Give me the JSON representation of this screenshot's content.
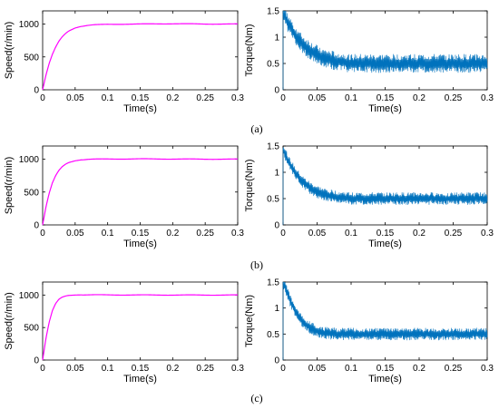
{
  "colors": {
    "speed": "#ff00ff",
    "torque": "#0072bd",
    "axis": "#000000"
  },
  "captions": [
    "(a)",
    "(b)",
    "(c)"
  ],
  "chart_data": [
    {
      "panel": "(a)",
      "type": "line",
      "xlabel": "Time(s)",
      "ylabel": "Speed(r/min)",
      "xlim": [
        0,
        0.3
      ],
      "ylim": [
        0,
        1200
      ],
      "xticks": [
        "0",
        "0.05",
        "0.1",
        "0.15",
        "0.2",
        "0.25",
        "0.3"
      ],
      "yticks": [
        "0",
        "500",
        "1000"
      ],
      "series": [
        {
          "x": [
            0,
            0.005,
            0.01,
            0.015,
            0.02,
            0.025,
            0.03,
            0.035,
            0.04,
            0.05,
            0.06,
            0.07,
            0.08,
            0.1,
            0.12,
            0.15,
            0.2,
            0.25,
            0.3
          ],
          "values": [
            0,
            220,
            400,
            540,
            650,
            740,
            805,
            855,
            893,
            940,
            965,
            980,
            988,
            995,
            998,
            1000,
            1005,
            1000,
            1000
          ]
        }
      ]
    },
    {
      "panel": "(a)",
      "type": "line",
      "xlabel": "Time(s)",
      "ylabel": "Torque(Nm)",
      "xlim": [
        0,
        0.3
      ],
      "ylim": [
        0,
        1.5
      ],
      "xticks": [
        "0",
        "0.05",
        "0.1",
        "0.15",
        "0.2",
        "0.25",
        "0.3"
      ],
      "yticks": [
        "0",
        "0.5",
        "1",
        "1.5"
      ],
      "series": [
        {
          "x": [
            0,
            0.002,
            0.01,
            0.02,
            0.03,
            0.04,
            0.05,
            0.06,
            0.08,
            0.1,
            0.15,
            0.2,
            0.25,
            0.3
          ],
          "values": [
            1.5,
            1.4,
            1.2,
            1.0,
            0.85,
            0.75,
            0.67,
            0.6,
            0.54,
            0.5,
            0.5,
            0.5,
            0.5,
            0.5
          ],
          "ripple": 0.18
        }
      ]
    },
    {
      "panel": "(b)",
      "type": "line",
      "xlabel": "Time(s)",
      "ylabel": "Speed(r/min)",
      "xlim": [
        0,
        0.3
      ],
      "ylim": [
        0,
        1200
      ],
      "xticks": [
        "0",
        "0.05",
        "0.1",
        "0.15",
        "0.2",
        "0.25",
        "0.3"
      ],
      "yticks": [
        "0",
        "500",
        "1000"
      ],
      "series": [
        {
          "x": [
            0,
            0.005,
            0.01,
            0.015,
            0.02,
            0.025,
            0.03,
            0.035,
            0.04,
            0.05,
            0.06,
            0.07,
            0.08,
            0.1,
            0.15,
            0.2,
            0.25,
            0.3
          ],
          "values": [
            0,
            270,
            480,
            640,
            750,
            830,
            885,
            922,
            948,
            975,
            990,
            997,
            1000,
            1002,
            1004,
            1002,
            1000,
            1000
          ]
        }
      ]
    },
    {
      "panel": "(b)",
      "type": "line",
      "xlabel": "Time(s)",
      "ylabel": "Torque(Nm)",
      "xlim": [
        0,
        0.3
      ],
      "ylim": [
        0,
        1.5
      ],
      "xticks": [
        "0",
        "0.05",
        "0.1",
        "0.15",
        "0.2",
        "0.25",
        "0.3"
      ],
      "yticks": [
        "0",
        "0.5",
        "1",
        "1.5"
      ],
      "series": [
        {
          "x": [
            0,
            0.002,
            0.01,
            0.02,
            0.03,
            0.04,
            0.05,
            0.06,
            0.08,
            0.1,
            0.15,
            0.2,
            0.25,
            0.3
          ],
          "values": [
            1.45,
            1.38,
            1.15,
            0.95,
            0.8,
            0.7,
            0.63,
            0.58,
            0.53,
            0.5,
            0.5,
            0.5,
            0.5,
            0.5
          ],
          "ripple": 0.12
        }
      ]
    },
    {
      "panel": "(c)",
      "type": "line",
      "xlabel": "Time(s)",
      "ylabel": "Speed(r/min)",
      "xlim": [
        0,
        0.3
      ],
      "ylim": [
        0,
        1200
      ],
      "xticks": [
        "0",
        "0.05",
        "0.1",
        "0.15",
        "0.2",
        "0.25",
        "0.3"
      ],
      "yticks": [
        "0",
        "500",
        "1000"
      ],
      "series": [
        {
          "x": [
            0,
            0.005,
            0.01,
            0.015,
            0.02,
            0.025,
            0.03,
            0.035,
            0.04,
            0.05,
            0.06,
            0.08,
            0.1,
            0.15,
            0.2,
            0.25,
            0.3
          ],
          "values": [
            0,
            330,
            580,
            760,
            870,
            935,
            968,
            985,
            994,
            1000,
            1002,
            1003,
            1002,
            1001,
            1000,
            1000,
            1000
          ]
        }
      ]
    },
    {
      "panel": "(c)",
      "type": "line",
      "xlabel": "Time(s)",
      "ylabel": "Torque(Nm)",
      "xlim": [
        0,
        0.3
      ],
      "ylim": [
        0,
        1.5
      ],
      "xticks": [
        "0",
        "0.05",
        "0.1",
        "0.15",
        "0.2",
        "0.25",
        "0.3"
      ],
      "yticks": [
        "0",
        "0.5",
        "1",
        "1.5"
      ],
      "series": [
        {
          "x": [
            0,
            0.002,
            0.01,
            0.02,
            0.03,
            0.04,
            0.05,
            0.06,
            0.08,
            0.1,
            0.15,
            0.2,
            0.25,
            0.3
          ],
          "values": [
            1.5,
            1.45,
            1.15,
            0.9,
            0.72,
            0.62,
            0.56,
            0.52,
            0.5,
            0.5,
            0.5,
            0.5,
            0.5,
            0.5
          ],
          "ripple": 0.12
        }
      ]
    }
  ]
}
